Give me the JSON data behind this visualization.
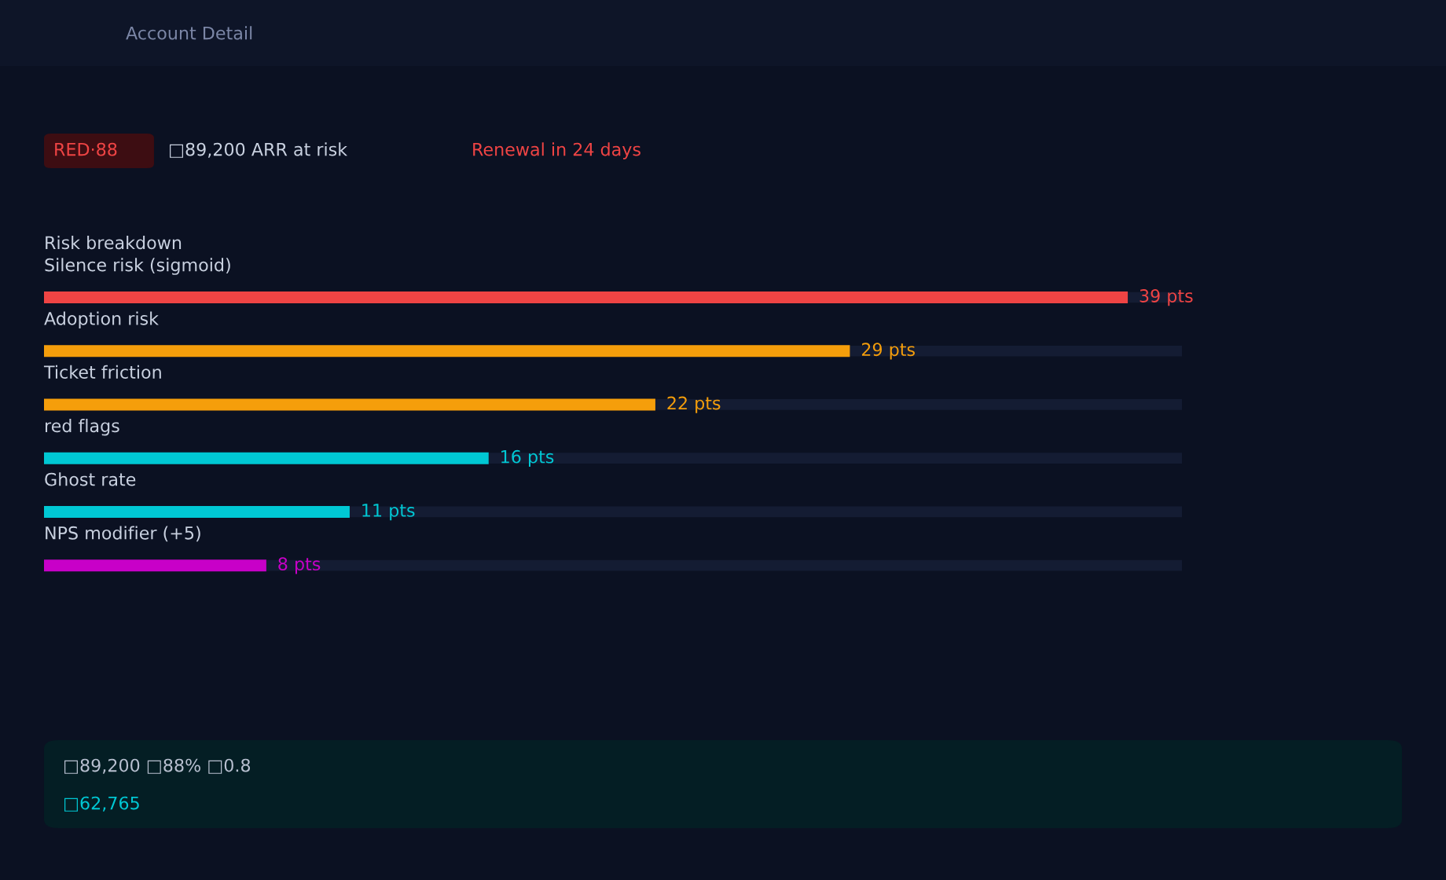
{
  "chart_data": {
    "type": "bar",
    "orientation": "horizontal",
    "title": "Risk breakdown",
    "categories": [
      "Silence risk (sigmoid)",
      "Adoption risk",
      "Ticket friction",
      "red flags",
      "Ghost rate",
      "NPS modifier (+5)"
    ],
    "values": [
      39,
      29,
      22,
      16,
      11,
      8
    ],
    "colors": [
      "#ef4444",
      "#f59e0b",
      "#f59e0b",
      "#00c8d4",
      "#00c8d4",
      "#c800c8"
    ],
    "value_labels": [
      "39 pts",
      "29 pts",
      "22 pts",
      "16 pts",
      "11 pts",
      "8 pts"
    ],
    "annotations": [
      "Account Detail",
      "RED·88",
      "□89,200 ARR at risk",
      "Renewal in 24 days",
      "□89,200 □88% □0.8",
      "□62,765"
    ]
  }
}
